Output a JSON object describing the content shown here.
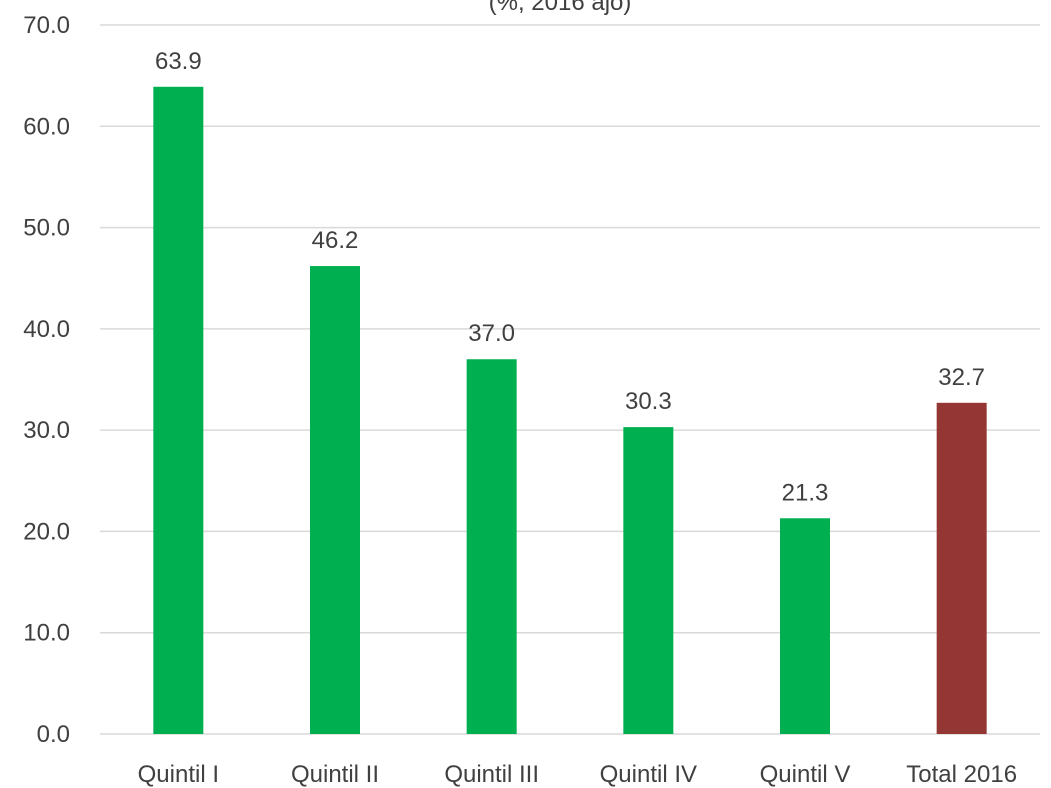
{
  "chart_data": {
    "type": "bar",
    "title": "(%, 2016 ajo)",
    "categories": [
      "Quintil I",
      "Quintil II",
      "Quintil III",
      "Quintil IV",
      "Quintil V",
      "Total 2016"
    ],
    "values": [
      63.9,
      46.2,
      37.0,
      30.3,
      21.3,
      32.7
    ],
    "value_labels": [
      "63.9",
      "46.2",
      "37.0",
      "30.3",
      "21.3",
      "32.7"
    ],
    "colors": [
      "#00b050",
      "#00b050",
      "#00b050",
      "#00b050",
      "#00b050",
      "#943634"
    ],
    "ylim": [
      0,
      70
    ],
    "yticks": [
      "0.0",
      "10.0",
      "20.0",
      "30.0",
      "40.0",
      "50.0",
      "60.0",
      "70.0"
    ],
    "grid": true,
    "xlabel": "",
    "ylabel": ""
  }
}
